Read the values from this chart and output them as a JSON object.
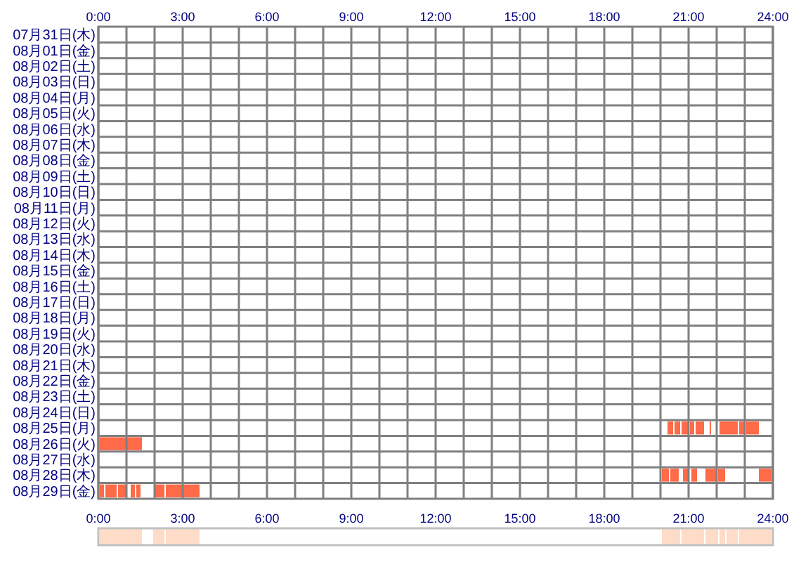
{
  "chart_data": [
    {
      "type": "bar",
      "orientation": "horizontal",
      "grid": true,
      "categories": [
        "07月31日(木)",
        "08月01日(金)",
        "08月02日(土)",
        "08月03日(日)",
        "08月04日(月)",
        "08月05日(火)",
        "08月06日(水)",
        "08月07日(木)",
        "08月08日(金)",
        "08月09日(土)",
        "08月10日(日)",
        "08月11日(月)",
        "08月12日(火)",
        "08月13日(水)",
        "08月14日(木)",
        "08月15日(金)",
        "08月16日(土)",
        "08月17日(日)",
        "08月18日(月)",
        "08月19日(火)",
        "08月20日(水)",
        "08月21日(木)",
        "08月22日(金)",
        "08月23日(土)",
        "08月24日(日)",
        "08月25日(月)",
        "08月26日(火)",
        "08月27日(水)",
        "08月28日(木)",
        "08月29日(金)"
      ],
      "xlim": [
        0,
        24
      ],
      "xticks": [
        {
          "value": 0,
          "label": "0:00"
        },
        {
          "value": 1,
          "label": null
        },
        {
          "value": 2,
          "label": null
        },
        {
          "value": 3,
          "label": "3:00"
        },
        {
          "value": 4,
          "label": null
        },
        {
          "value": 5,
          "label": null
        },
        {
          "value": 6,
          "label": "6:00"
        },
        {
          "value": 7,
          "label": null
        },
        {
          "value": 8,
          "label": null
        },
        {
          "value": 9,
          "label": "9:00"
        },
        {
          "value": 10,
          "label": null
        },
        {
          "value": 11,
          "label": null
        },
        {
          "value": 12,
          "label": "12:00"
        },
        {
          "value": 13,
          "label": null
        },
        {
          "value": 14,
          "label": null
        },
        {
          "value": 15,
          "label": "15:00"
        },
        {
          "value": 16,
          "label": null
        },
        {
          "value": 17,
          "label": null
        },
        {
          "value": 18,
          "label": "18:00"
        },
        {
          "value": 19,
          "label": null
        },
        {
          "value": 20,
          "label": null
        },
        {
          "value": 21,
          "label": "21:00"
        },
        {
          "value": 22,
          "label": null
        },
        {
          "value": 23,
          "label": null
        },
        {
          "value": 24,
          "label": "24:00"
        }
      ],
      "series": [
        {
          "color": "#ff6a48",
          "base": [
            null,
            null,
            null,
            null,
            null,
            null,
            null,
            null,
            null,
            null,
            null,
            null,
            null,
            null,
            null,
            null,
            null,
            null,
            null,
            null,
            null,
            null,
            null,
            null,
            null,
            20.25,
            0.05,
            null,
            20.05,
            0.05
          ],
          "values": [
            null,
            null,
            null,
            null,
            null,
            null,
            null,
            null,
            null,
            null,
            null,
            null,
            null,
            null,
            null,
            null,
            null,
            null,
            null,
            null,
            null,
            null,
            null,
            null,
            null,
            0.2,
            1.5,
            null,
            0.25,
            0.15
          ]
        },
        {
          "color": "#ff6a48",
          "base": [
            null,
            null,
            null,
            null,
            null,
            null,
            null,
            null,
            null,
            null,
            null,
            null,
            null,
            null,
            null,
            null,
            null,
            null,
            null,
            null,
            null,
            null,
            null,
            null,
            null,
            20.5,
            null,
            null,
            20.35,
            0.25
          ],
          "values": [
            null,
            null,
            null,
            null,
            null,
            null,
            null,
            null,
            null,
            null,
            null,
            null,
            null,
            null,
            null,
            null,
            null,
            null,
            null,
            null,
            null,
            null,
            null,
            null,
            null,
            0.2,
            null,
            null,
            0.3,
            0.4
          ]
        },
        {
          "color": "#ff6a48",
          "base": [
            null,
            null,
            null,
            null,
            null,
            null,
            null,
            null,
            null,
            null,
            null,
            null,
            null,
            null,
            null,
            null,
            null,
            null,
            null,
            null,
            null,
            null,
            null,
            null,
            null,
            20.75,
            null,
            null,
            20.8,
            0.7
          ],
          "values": [
            null,
            null,
            null,
            null,
            null,
            null,
            null,
            null,
            null,
            null,
            null,
            null,
            null,
            null,
            null,
            null,
            null,
            null,
            null,
            null,
            null,
            null,
            null,
            null,
            null,
            0.25,
            null,
            null,
            0.2,
            0.3
          ]
        },
        {
          "color": "#ff6a48",
          "base": [
            null,
            null,
            null,
            null,
            null,
            null,
            null,
            null,
            null,
            null,
            null,
            null,
            null,
            null,
            null,
            null,
            null,
            null,
            null,
            null,
            null,
            null,
            null,
            null,
            null,
            21.05,
            null,
            null,
            21.1,
            1.15
          ],
          "values": [
            null,
            null,
            null,
            null,
            null,
            null,
            null,
            null,
            null,
            null,
            null,
            null,
            null,
            null,
            null,
            null,
            null,
            null,
            null,
            null,
            null,
            null,
            null,
            null,
            null,
            0.15,
            null,
            null,
            0.2,
            0.15
          ]
        },
        {
          "color": "#ff6a48",
          "base": [
            null,
            null,
            null,
            null,
            null,
            null,
            null,
            null,
            null,
            null,
            null,
            null,
            null,
            null,
            null,
            null,
            null,
            null,
            null,
            null,
            null,
            null,
            null,
            null,
            null,
            21.25,
            null,
            null,
            21.6,
            1.35
          ],
          "values": [
            null,
            null,
            null,
            null,
            null,
            null,
            null,
            null,
            null,
            null,
            null,
            null,
            null,
            null,
            null,
            null,
            null,
            null,
            null,
            null,
            null,
            null,
            null,
            null,
            null,
            0.3,
            null,
            null,
            0.4,
            0.15
          ]
        },
        {
          "color": "#ff6a48",
          "base": [
            null,
            null,
            null,
            null,
            null,
            null,
            null,
            null,
            null,
            null,
            null,
            null,
            null,
            null,
            null,
            null,
            null,
            null,
            null,
            null,
            null,
            null,
            null,
            null,
            null,
            21.75,
            null,
            null,
            22.05,
            2.0
          ],
          "values": [
            null,
            null,
            null,
            null,
            null,
            null,
            null,
            null,
            null,
            null,
            null,
            null,
            null,
            null,
            null,
            null,
            null,
            null,
            null,
            null,
            null,
            null,
            null,
            null,
            null,
            0.05,
            null,
            null,
            0.25,
            0.35
          ]
        },
        {
          "color": "#ff6a48",
          "base": [
            null,
            null,
            null,
            null,
            null,
            null,
            null,
            null,
            null,
            null,
            null,
            null,
            null,
            null,
            null,
            null,
            null,
            null,
            null,
            null,
            null,
            null,
            null,
            null,
            null,
            22.1,
            null,
            null,
            23.5,
            2.4
          ],
          "values": [
            null,
            null,
            null,
            null,
            null,
            null,
            null,
            null,
            null,
            null,
            null,
            null,
            null,
            null,
            null,
            null,
            null,
            null,
            null,
            null,
            null,
            null,
            null,
            null,
            null,
            0.65,
            null,
            null,
            0.45,
            1.2
          ]
        },
        {
          "color": "#ff6a48",
          "base": [
            null,
            null,
            null,
            null,
            null,
            null,
            null,
            null,
            null,
            null,
            null,
            null,
            null,
            null,
            null,
            null,
            null,
            null,
            null,
            null,
            null,
            null,
            null,
            null,
            null,
            22.8,
            null,
            null,
            null,
            null
          ],
          "values": [
            null,
            null,
            null,
            null,
            null,
            null,
            null,
            null,
            null,
            null,
            null,
            null,
            null,
            null,
            null,
            null,
            null,
            null,
            null,
            null,
            null,
            null,
            null,
            null,
            null,
            0.2,
            null,
            null,
            null,
            null
          ]
        },
        {
          "color": "#ff6a48",
          "base": [
            null,
            null,
            null,
            null,
            null,
            null,
            null,
            null,
            null,
            null,
            null,
            null,
            null,
            null,
            null,
            null,
            null,
            null,
            null,
            null,
            null,
            null,
            null,
            null,
            null,
            23.05,
            null,
            null,
            null,
            null
          ],
          "values": [
            null,
            null,
            null,
            null,
            null,
            null,
            null,
            null,
            null,
            null,
            null,
            null,
            null,
            null,
            null,
            null,
            null,
            null,
            null,
            null,
            null,
            null,
            null,
            null,
            null,
            0.45,
            null,
            null,
            null,
            null
          ]
        }
      ]
    },
    {
      "type": "bar",
      "orientation": "horizontal",
      "grid": false,
      "categories": [
        null
      ],
      "xlim": [
        0,
        24
      ],
      "xticks": [
        {
          "value": 0,
          "label": "0:00"
        },
        {
          "value": 3,
          "label": "3:00"
        },
        {
          "value": 6,
          "label": "6:00"
        },
        {
          "value": 9,
          "label": "9:00"
        },
        {
          "value": 12,
          "label": "12:00"
        },
        {
          "value": 15,
          "label": "15:00"
        },
        {
          "value": 18,
          "label": "18:00"
        },
        {
          "value": 21,
          "label": "21:00"
        },
        {
          "value": 24,
          "label": "24:00"
        }
      ],
      "series": [
        {
          "color": "#ffdcc8",
          "base": [
            0.05
          ],
          "values": [
            1.5
          ]
        },
        {
          "color": "#ffdcc8",
          "base": [
            1.95
          ],
          "values": [
            0.4
          ]
        },
        {
          "color": "#ffdcc8",
          "base": [
            2.4
          ],
          "values": [
            1.2
          ]
        },
        {
          "color": "#ffdcc8",
          "base": [
            20.05
          ],
          "values": [
            0.65
          ]
        },
        {
          "color": "#ffdcc8",
          "base": [
            20.75
          ],
          "values": [
            0.8
          ]
        },
        {
          "color": "#ffdcc8",
          "base": [
            21.6
          ],
          "values": [
            0.45
          ]
        },
        {
          "color": "#ffdcc8",
          "base": [
            22.1
          ],
          "values": [
            0.2
          ]
        },
        {
          "color": "#ffdcc8",
          "base": [
            22.35
          ],
          "values": [
            0.4
          ]
        },
        {
          "color": "#ffdcc8",
          "base": [
            22.8
          ],
          "values": [
            1.15
          ]
        }
      ]
    }
  ]
}
